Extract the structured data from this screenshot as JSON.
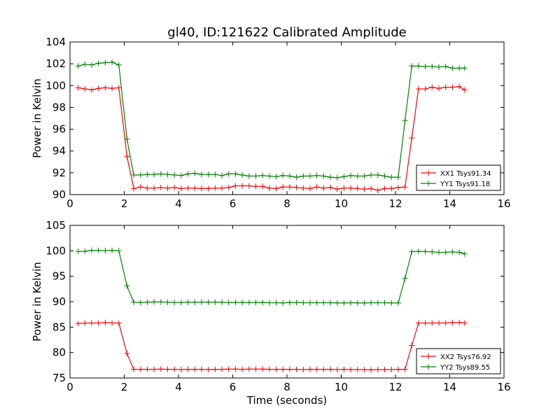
{
  "figure": {
    "title": "gl40, ID:121622 Calibrated Amplitude",
    "xlabel": "Time (seconds)"
  },
  "chart_data": [
    {
      "type": "line",
      "title": "gl40, ID:121622 Calibrated Amplitude",
      "xlabel": "",
      "ylabel": "Power in Kelvin",
      "xlim": [
        0,
        16
      ],
      "ylim": [
        90,
        104
      ],
      "xticks": [
        0,
        2,
        4,
        6,
        8,
        10,
        12,
        14,
        16
      ],
      "yticks": [
        90,
        92,
        94,
        96,
        98,
        100,
        102,
        104
      ],
      "grid": false,
      "legend": "lower-right",
      "x": [
        0.3,
        0.55,
        0.8,
        1.05,
        1.3,
        1.55,
        1.8,
        2.1,
        2.35,
        2.6,
        2.85,
        3.1,
        3.35,
        3.6,
        3.85,
        4.1,
        4.35,
        4.6,
        4.85,
        5.1,
        5.35,
        5.6,
        5.85,
        6.1,
        6.35,
        6.6,
        6.85,
        7.1,
        7.35,
        7.6,
        7.85,
        8.1,
        8.35,
        8.6,
        8.85,
        9.1,
        9.35,
        9.6,
        9.85,
        10.1,
        10.35,
        10.6,
        10.85,
        11.1,
        11.35,
        11.6,
        11.85,
        12.1,
        12.35,
        12.6,
        12.85,
        13.1,
        13.35,
        13.6,
        13.85,
        14.1,
        14.35,
        14.55
      ],
      "series": [
        {
          "name": "XX1 Tsys91.34",
          "color": "#ff0000",
          "values": [
            99.8,
            99.7,
            99.6,
            99.75,
            99.8,
            99.75,
            99.8,
            93.5,
            90.55,
            90.7,
            90.6,
            90.6,
            90.65,
            90.6,
            90.65,
            90.55,
            90.6,
            90.6,
            90.55,
            90.55,
            90.6,
            90.6,
            90.65,
            90.8,
            90.8,
            90.8,
            90.75,
            90.75,
            90.6,
            90.55,
            90.7,
            90.7,
            90.65,
            90.6,
            90.55,
            90.7,
            90.6,
            90.65,
            90.5,
            90.6,
            90.6,
            90.55,
            90.5,
            90.55,
            90.4,
            90.55,
            90.55,
            90.65,
            90.7,
            95.2,
            99.7,
            99.7,
            99.85,
            99.75,
            99.85,
            99.85,
            99.9,
            99.6
          ]
        },
        {
          "name": "YY1 Tsys91.18",
          "color": "#008000",
          "values": [
            101.8,
            101.95,
            101.9,
            102.05,
            102.1,
            102.15,
            101.9,
            95.1,
            91.8,
            91.8,
            91.85,
            91.85,
            91.9,
            91.85,
            91.8,
            91.75,
            91.9,
            91.95,
            91.85,
            91.85,
            91.85,
            91.75,
            91.9,
            91.9,
            91.8,
            91.7,
            91.7,
            91.75,
            91.7,
            91.65,
            91.75,
            91.7,
            91.6,
            91.7,
            91.7,
            91.75,
            91.7,
            91.6,
            91.55,
            91.65,
            91.75,
            91.7,
            91.7,
            91.8,
            91.8,
            91.7,
            91.6,
            91.6,
            96.8,
            101.8,
            101.8,
            101.75,
            101.75,
            101.7,
            101.75,
            101.6,
            101.6,
            101.6
          ]
        }
      ]
    },
    {
      "type": "line",
      "title": "",
      "xlabel": "Time (seconds)",
      "ylabel": "Power in Kelvin",
      "xlim": [
        0,
        16
      ],
      "ylim": [
        75,
        105
      ],
      "xticks": [
        0,
        2,
        4,
        6,
        8,
        10,
        12,
        14,
        16
      ],
      "yticks": [
        75,
        80,
        85,
        90,
        95,
        100,
        105
      ],
      "grid": false,
      "legend": "lower-right",
      "x": [
        0.3,
        0.55,
        0.8,
        1.05,
        1.3,
        1.55,
        1.8,
        2.1,
        2.35,
        2.6,
        2.85,
        3.1,
        3.35,
        3.6,
        3.85,
        4.1,
        4.35,
        4.6,
        4.85,
        5.1,
        5.35,
        5.6,
        5.85,
        6.1,
        6.35,
        6.6,
        6.85,
        7.1,
        7.35,
        7.6,
        7.85,
        8.1,
        8.35,
        8.6,
        8.85,
        9.1,
        9.35,
        9.6,
        9.85,
        10.1,
        10.35,
        10.6,
        10.85,
        11.1,
        11.35,
        11.6,
        11.85,
        12.1,
        12.35,
        12.6,
        12.85,
        13.1,
        13.35,
        13.6,
        13.85,
        14.1,
        14.35,
        14.55
      ],
      "series": [
        {
          "name": "XX2 Tsys76.92",
          "color": "#ff0000",
          "values": [
            85.7,
            85.8,
            85.8,
            85.8,
            85.9,
            85.8,
            85.8,
            79.8,
            76.7,
            76.7,
            76.7,
            76.7,
            76.75,
            76.7,
            76.7,
            76.65,
            76.7,
            76.7,
            76.7,
            76.65,
            76.7,
            76.7,
            76.75,
            76.75,
            76.7,
            76.75,
            76.75,
            76.75,
            76.7,
            76.7,
            76.7,
            76.7,
            76.7,
            76.65,
            76.7,
            76.7,
            76.7,
            76.7,
            76.65,
            76.7,
            76.65,
            76.65,
            76.65,
            76.6,
            76.65,
            76.65,
            76.65,
            76.7,
            76.7,
            81.4,
            85.8,
            85.8,
            85.8,
            85.8,
            85.8,
            85.9,
            85.9,
            85.8
          ]
        },
        {
          "name": "YY2 Tsys89.55",
          "color": "#008000",
          "values": [
            99.9,
            99.9,
            100.1,
            100.1,
            100.05,
            100.1,
            100.0,
            93.1,
            89.9,
            89.85,
            89.9,
            89.95,
            89.95,
            89.9,
            89.85,
            89.85,
            89.9,
            89.9,
            89.9,
            89.9,
            89.9,
            89.9,
            89.85,
            89.85,
            89.85,
            89.85,
            89.85,
            89.85,
            89.8,
            89.8,
            89.75,
            89.85,
            89.85,
            89.8,
            89.8,
            89.8,
            89.8,
            89.8,
            89.75,
            89.75,
            89.8,
            89.75,
            89.75,
            89.8,
            89.8,
            89.8,
            89.75,
            89.75,
            94.6,
            99.85,
            99.9,
            99.85,
            99.8,
            99.7,
            99.7,
            99.8,
            99.7,
            99.4
          ]
        }
      ]
    }
  ]
}
